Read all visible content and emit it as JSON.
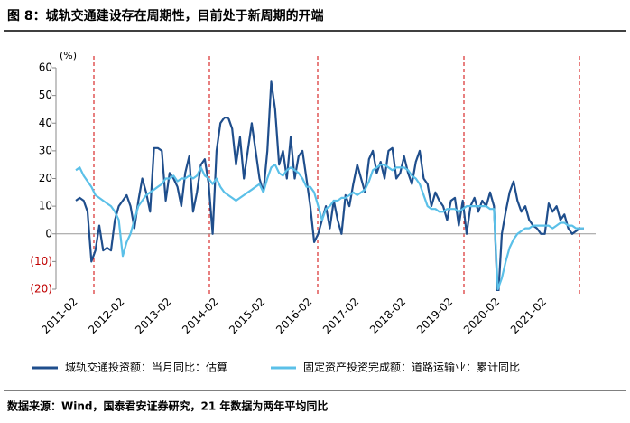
{
  "chart_data": {
    "type": "line",
    "title": "图 8：城轨交通建设存在周期性，目前处于新周期的开端",
    "y_unit": "(%)",
    "source": "数据来源：Wind，国泰君安证券研究，21 年数据为两年平均同比",
    "categories": [
      "2011-02",
      null,
      null,
      null,
      null,
      null,
      null,
      null,
      null,
      null,
      null,
      null,
      "2012-02",
      null,
      null,
      null,
      null,
      null,
      null,
      null,
      null,
      null,
      null,
      null,
      "2013-02",
      null,
      null,
      null,
      null,
      null,
      null,
      null,
      null,
      null,
      null,
      null,
      "2014-02",
      null,
      null,
      null,
      null,
      null,
      null,
      null,
      null,
      null,
      null,
      null,
      "2015-02",
      null,
      null,
      null,
      null,
      null,
      null,
      null,
      null,
      null,
      null,
      null,
      "2016-02",
      null,
      null,
      null,
      null,
      null,
      null,
      null,
      null,
      null,
      null,
      null,
      "2017-02",
      null,
      null,
      null,
      null,
      null,
      null,
      null,
      null,
      null,
      null,
      null,
      "2018-02",
      null,
      null,
      null,
      null,
      null,
      null,
      null,
      null,
      null,
      null,
      null,
      "2019-02",
      null,
      null,
      null,
      null,
      null,
      null,
      null,
      null,
      null,
      null,
      null,
      "2020-02",
      null,
      null,
      null,
      null,
      null,
      null,
      null,
      null,
      null,
      null,
      null,
      "2021-02",
      null,
      null,
      null,
      null,
      null,
      null,
      null,
      null,
      null,
      null
    ],
    "series": [
      {
        "name": "城轨交通投资额：当月同比：估算",
        "color": "#1f4e8c",
        "values": [
          12,
          13,
          12,
          8,
          -10,
          -6,
          3,
          -6,
          -5,
          -6,
          5,
          10,
          12,
          14,
          10,
          2,
          12,
          20,
          15,
          8,
          31,
          31,
          30,
          12,
          22,
          20,
          17,
          10,
          22,
          28,
          8,
          15,
          25,
          27,
          18,
          0,
          30,
          40,
          42,
          42,
          38,
          25,
          35,
          20,
          30,
          40,
          30,
          20,
          15,
          30,
          55,
          45,
          25,
          30,
          20,
          35,
          20,
          28,
          30,
          20,
          10,
          -3,
          0,
          5,
          10,
          2,
          12,
          5,
          0,
          14,
          10,
          18,
          25,
          20,
          15,
          27,
          30,
          22,
          26,
          20,
          30,
          31,
          20,
          22,
          28,
          22,
          18,
          26,
          30,
          20,
          18,
          10,
          15,
          12,
          10,
          5,
          12,
          13,
          3,
          12,
          0,
          10,
          13,
          8,
          12,
          10,
          15,
          10,
          -25,
          0,
          8,
          15,
          19,
          12,
          8,
          10,
          5,
          3,
          2,
          0,
          0,
          11,
          8,
          10,
          5,
          7,
          2,
          0,
          1,
          2,
          2
        ]
      },
      {
        "name": "固定资产投资完成额：道路运输业：累计同比",
        "color": "#5bc0e8",
        "values": [
          23,
          24,
          21,
          19,
          17,
          14,
          13,
          12,
          11,
          10,
          8,
          5,
          -8,
          -3,
          0,
          5,
          10,
          12,
          14,
          15,
          16,
          17,
          18,
          20,
          20,
          21,
          19,
          20,
          20,
          21,
          20,
          21,
          24,
          21,
          20,
          18,
          20,
          17,
          15,
          14,
          13,
          12,
          13,
          14,
          15,
          16,
          17,
          18,
          15,
          20,
          24,
          25,
          22,
          21,
          23,
          24,
          23,
          22,
          20,
          17,
          17,
          15,
          10,
          5,
          9,
          10,
          12,
          12,
          13,
          13,
          14,
          15,
          14,
          15,
          16,
          19,
          23,
          24,
          25,
          25,
          24,
          23,
          24,
          24,
          24,
          23,
          21,
          20,
          18,
          14,
          10,
          9,
          9,
          8,
          8,
          9,
          9,
          9,
          8,
          9,
          10,
          10,
          10,
          10,
          10,
          10,
          9,
          9,
          -20,
          -16,
          -10,
          -5,
          -2,
          0,
          1,
          2,
          2,
          3,
          3,
          3,
          3,
          3,
          2,
          3,
          4,
          4,
          3,
          3,
          2,
          2,
          2
        ]
      }
    ],
    "ylim": [
      -20,
      60
    ],
    "yticks": [
      {
        "value": -20,
        "label": "(20)"
      },
      {
        "value": -10,
        "label": "(10)"
      },
      0,
      10,
      20,
      30,
      40,
      50,
      60
    ]
  }
}
